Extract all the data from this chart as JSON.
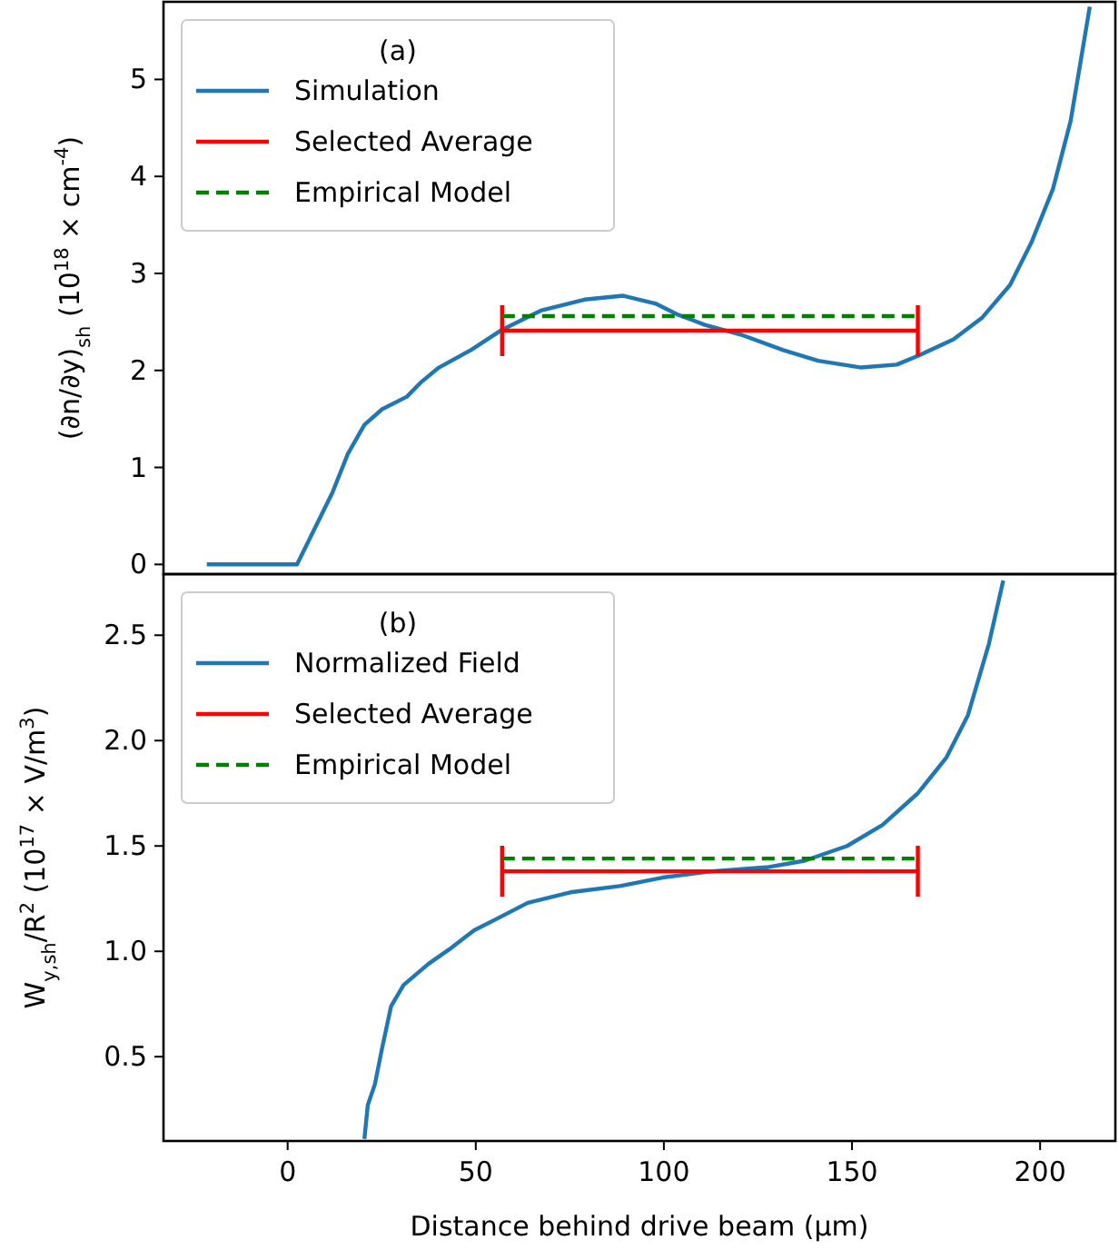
{
  "chart_data": [
    {
      "type": "line",
      "legend_title": "(a)",
      "legend": "top left",
      "ylabel": "(∂n/∂y)$_{sh}$ (10$^{18}$ × cm$^{-4}$)",
      "xlim": [
        -33,
        220
      ],
      "xticks": [
        0,
        50,
        100,
        150,
        200
      ],
      "ylim": [
        -0.1,
        5.8
      ],
      "yticks": [
        0,
        1,
        2,
        3,
        4,
        5
      ],
      "tick_labels": "y",
      "series": [
        {
          "name": "Simulation",
          "color": "#1f77b4",
          "line_style": "solid",
          "x": [
            -21.5,
            2.5,
            7.2,
            11.9,
            16,
            20.4,
            25.1,
            31.7,
            35.5,
            40.2,
            48.7,
            57,
            67.5,
            78.9,
            89.2,
            97.7,
            103.4,
            110.9,
            120.4,
            131.7,
            141,
            152.5,
            161.9,
            167.5,
            177,
            184.5,
            192,
            197.7,
            203.4,
            208.1,
            211,
            213.2
          ],
          "values": [
            0,
            0,
            0.37,
            0.74,
            1.14,
            1.44,
            1.6,
            1.73,
            1.88,
            2.03,
            2.21,
            2.42,
            2.62,
            2.73,
            2.77,
            2.69,
            2.58,
            2.47,
            2.37,
            2.21,
            2.1,
            2.03,
            2.06,
            2.15,
            2.32,
            2.54,
            2.88,
            3.32,
            3.87,
            4.57,
            5.24,
            5.75
          ]
        },
        {
          "name": "Selected Average",
          "color": "#ff0000",
          "line_style": "solid",
          "x": [
            57,
            167.5
          ],
          "values": [
            2.41,
            2.41
          ]
        },
        {
          "name": "Empirical Model",
          "color": "#008000",
          "line_style": "dashed",
          "x": [
            57,
            167.5
          ],
          "values": [
            2.56,
            2.56
          ]
        }
      ]
    },
    {
      "type": "line",
      "legend_title": "(b)",
      "legend": "top left",
      "ylabel": "W$_{y,sh}$/R$^{2}$ (10$^{17}$ × V/m$^{3}$)",
      "xlabel": "Distance behind drive beam (μm)",
      "xlim": [
        -33,
        220
      ],
      "xticks": [
        0,
        50,
        100,
        150,
        200
      ],
      "ylim": [
        0.1,
        2.79
      ],
      "yticks": [
        0.5,
        {
          "value": 1,
          "label": "1.0"
        },
        1.5,
        {
          "value": 2,
          "label": "2.0"
        },
        2.5
      ],
      "series": [
        {
          "name": "Normalized Field",
          "color": "#1f77b4",
          "line_style": "solid",
          "x": [
            20.4,
            21.3,
            23.2,
            25.1,
            27.5,
            30.8,
            37.4,
            43,
            49.6,
            56.2,
            63.8,
            75.1,
            88.3,
            99.6,
            112.8,
            127.9,
            137.4,
            148.7,
            158.1,
            167.5,
            175.1,
            180.8,
            186.4,
            190.2
          ],
          "values": [
            0.11,
            0.27,
            0.37,
            0.54,
            0.74,
            0.84,
            0.94,
            1.01,
            1.1,
            1.16,
            1.23,
            1.28,
            1.31,
            1.35,
            1.38,
            1.4,
            1.43,
            1.5,
            1.6,
            1.75,
            1.92,
            2.12,
            2.46,
            2.76
          ]
        },
        {
          "name": "Selected Average",
          "color": "#ff0000",
          "line_style": "solid",
          "x": [
            57,
            167.5
          ],
          "values": [
            1.38,
            1.38
          ]
        },
        {
          "name": "Empirical Model",
          "color": "#008000",
          "line_style": "dashed",
          "x": [
            57,
            167.5
          ],
          "values": [
            1.44,
            1.44
          ]
        }
      ]
    }
  ]
}
